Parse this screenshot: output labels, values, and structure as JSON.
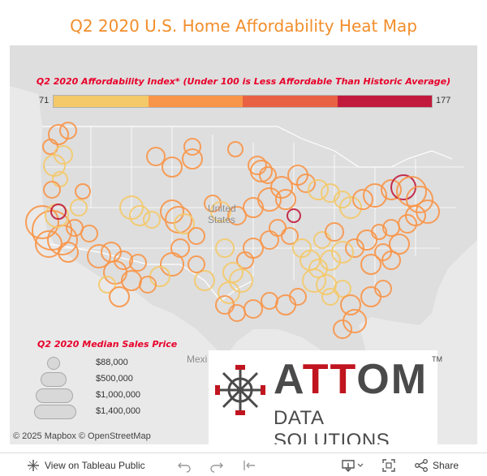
{
  "title": "Q2 2020 U.S. Home Affordability Heat Map",
  "color_legend": {
    "title": "Q2 2020 Affordability Index* (Under 100 is Less Affordable Than Historic Average)",
    "min": "71",
    "max": "177",
    "colors": [
      "#f4c96a",
      "#f89548",
      "#e86142",
      "#c11a3c"
    ]
  },
  "size_legend": {
    "title": "Q2 2020 Median Sales Price",
    "items": [
      "$88,000",
      "$500,000",
      "$1,000,000",
      "$1,400,000"
    ]
  },
  "map_labels": {
    "country_line1": "United",
    "country_line2": "States",
    "mexico": "Mexi"
  },
  "logo": {
    "word_a": "A",
    "word_tt": "TT",
    "word_om": "OM",
    "trademark": "TM",
    "subtitle": "DATA SOLUTIONS"
  },
  "credits": "© 2025 Mapbox  © OpenStreetMap",
  "toolbar": {
    "view_label": "View on Tableau Public",
    "share_label": "Share",
    "icons": [
      "tableau-icon",
      "undo-icon",
      "redo-icon",
      "revert-icon",
      "download-icon",
      "fullscreen-icon",
      "share-icon"
    ]
  }
}
